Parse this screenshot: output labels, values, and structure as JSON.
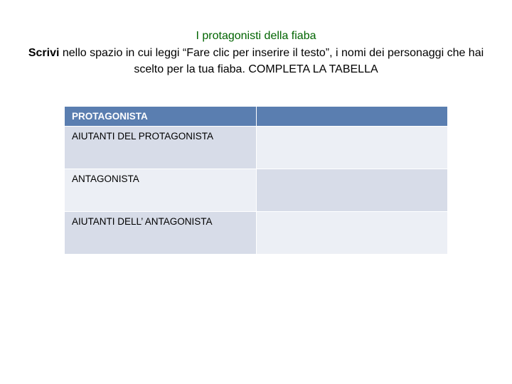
{
  "heading": {
    "title": "I protagonisti della fiaba",
    "instruction_bold": "Scrivi",
    "instruction_rest": " nello spazio in cui leggi “Fare clic per inserire il testo”, i nomi dei personaggi che hai scelto per la tua fiaba. COMPLETA LA TABELLA"
  },
  "table": {
    "type": "table",
    "columns": [
      "label",
      "value"
    ],
    "column_widths": [
      "50%",
      "50%"
    ],
    "header_bg": "#5a7eb0",
    "header_text_color": "#ffffff",
    "row_label_bg": "#d7dce8",
    "row_value_bg": "#eceff5",
    "alt_row_label_bg": "#eceff5",
    "alt_row_value_bg": "#d7dce8",
    "border_color": "#ffffff",
    "font_size": 13.5,
    "rows": [
      {
        "label": "PROTAGONISTA",
        "value": "",
        "is_header": true
      },
      {
        "label": "AIUTANTI DEL PROTAGONISTA",
        "value": "",
        "is_header": false
      },
      {
        "label": "ANTAGONISTA",
        "value": "",
        "is_header": false
      },
      {
        "label": "AIUTANTI DELL’ ANTAGONISTA",
        "value": "",
        "is_header": false
      }
    ]
  },
  "colors": {
    "title_color": "#006400",
    "text_color": "#000000",
    "background": "#ffffff"
  }
}
